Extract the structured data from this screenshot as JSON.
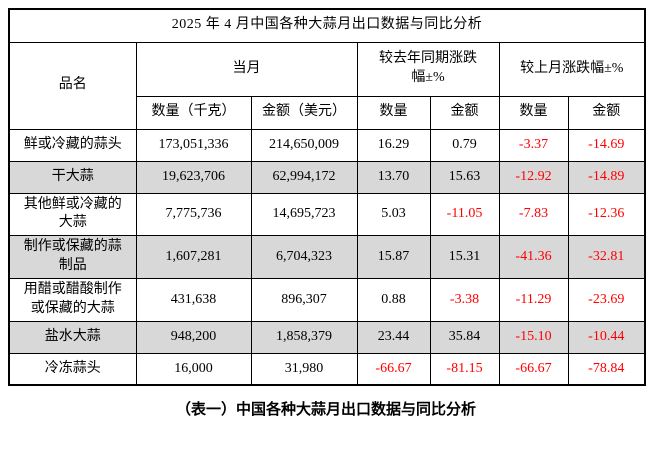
{
  "title": "2025 年 4 月中国各种大蒜月出口数据与同比分析",
  "caption": "（表一）中国各种大蒜月出口数据与同比分析",
  "colors": {
    "negative_value": "#ff0000",
    "positive_value": "#000000",
    "shaded_row": "#d8d8d8",
    "border": "#000000",
    "background": "#ffffff"
  },
  "table": {
    "header": {
      "product": "品名",
      "current_month": "当月",
      "yoy_change": "较去年同期涨跌\n幅±%",
      "mom_change": "较上月涨跌幅±%",
      "qty_kg": "数量（千克）",
      "amt_usd": "金额（美元）",
      "qty": "数量",
      "amt": "金额"
    },
    "rows": [
      {
        "name": "鲜或冷藏的蒜头",
        "qty": "173,051,336",
        "amt": "214,650,009",
        "yoy_qty": "16.29",
        "yoy_amt": "0.79",
        "mom_qty": "-3.37",
        "mom_amt": "-14.69",
        "shaded": false
      },
      {
        "name": "干大蒜",
        "qty": "19,623,706",
        "amt": "62,994,172",
        "yoy_qty": "13.70",
        "yoy_amt": "15.63",
        "mom_qty": "-12.92",
        "mom_amt": "-14.89",
        "shaded": true
      },
      {
        "name": "其他鲜或冷藏的\n大蒜",
        "qty": "7,775,736",
        "amt": "14,695,723",
        "yoy_qty": "5.03",
        "yoy_amt": "-11.05",
        "mom_qty": "-7.83",
        "mom_amt": "-12.36",
        "shaded": false
      },
      {
        "name": "制作或保藏的蒜\n制品",
        "qty": "1,607,281",
        "amt": "6,704,323",
        "yoy_qty": "15.87",
        "yoy_amt": "15.31",
        "mom_qty": "-41.36",
        "mom_amt": "-32.81",
        "shaded": true
      },
      {
        "name": "用醋或醋酸制作\n或保藏的大蒜",
        "qty": "431,638",
        "amt": "896,307",
        "yoy_qty": "0.88",
        "yoy_amt": "-3.38",
        "mom_qty": "-11.29",
        "mom_amt": "-23.69",
        "shaded": false
      },
      {
        "name": "盐水大蒜",
        "qty": "948,200",
        "amt": "1,858,379",
        "yoy_qty": "23.44",
        "yoy_amt": "35.84",
        "mom_qty": "-15.10",
        "mom_amt": "-10.44",
        "shaded": true
      },
      {
        "name": "冷冻蒜头",
        "qty": "16,000",
        "amt": "31,980",
        "yoy_qty": "-66.67",
        "yoy_amt": "-81.15",
        "mom_qty": "-66.67",
        "mom_amt": "-78.84",
        "shaded": false
      }
    ]
  }
}
